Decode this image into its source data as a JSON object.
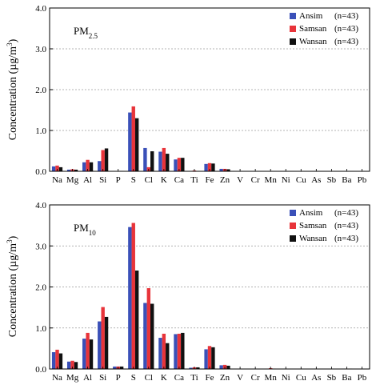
{
  "chart_data": [
    {
      "type": "bar",
      "panel_label": {
        "main": "PM",
        "sub": "2.5"
      },
      "ylabel": "Concentration (µg/m",
      "ylabel_sup": "3",
      "ylabel_close": ")",
      "ylim": [
        0,
        4.0
      ],
      "yticks": [
        "0.0",
        "1.0",
        "2.0",
        "3.0",
        "4.0"
      ],
      "grid": "horizontal dotted",
      "legend_position": "top-right",
      "categories": [
        "Na",
        "Mg",
        "Al",
        "Si",
        "P",
        "S",
        "Cl",
        "K",
        "Ca",
        "Ti",
        "Fe",
        "Zn",
        "V",
        "Cr",
        "Mn",
        "Ni",
        "Cu",
        "As",
        "Sb",
        "Ba",
        "Pb"
      ],
      "series": [
        {
          "name": "Ansim",
          "n": "(n=43)",
          "color": "#3a50b8",
          "values": [
            0.12,
            0.04,
            0.22,
            0.25,
            0.01,
            1.44,
            0.57,
            0.48,
            0.29,
            0.01,
            0.18,
            0.06,
            0,
            0,
            0,
            0,
            0,
            0,
            0,
            0,
            0
          ]
        },
        {
          "name": "Samsan",
          "n": "(n=43)",
          "color": "#e8343a",
          "values": [
            0.14,
            0.05,
            0.28,
            0.52,
            0.01,
            1.59,
            0.1,
            0.57,
            0.33,
            0.02,
            0.2,
            0.06,
            0,
            0,
            0,
            0,
            0,
            0,
            0,
            0,
            0
          ]
        },
        {
          "name": "Wansan",
          "n": "(n=43)",
          "color": "#111111",
          "values": [
            0.1,
            0.04,
            0.22,
            0.56,
            0.01,
            1.3,
            0.49,
            0.43,
            0.33,
            0.01,
            0.19,
            0.05,
            0,
            0,
            0,
            0,
            0,
            0,
            0,
            0,
            0
          ]
        }
      ]
    },
    {
      "type": "bar",
      "panel_label": {
        "main": "PM",
        "sub": "10"
      },
      "ylabel": "Concentration (µg/m",
      "ylabel_sup": "3",
      "ylabel_close": ")",
      "ylim": [
        0,
        4.0
      ],
      "yticks": [
        "0.0",
        "1.0",
        "2.0",
        "3.0",
        "4.0"
      ],
      "grid": "horizontal dotted",
      "legend_position": "top-right",
      "categories": [
        "Na",
        "Mg",
        "Al",
        "Si",
        "P",
        "S",
        "Cl",
        "K",
        "Ca",
        "Ti",
        "Fe",
        "Zn",
        "V",
        "Cr",
        "Mn",
        "Ni",
        "Cu",
        "As",
        "Sb",
        "Ba",
        "Pb"
      ],
      "series": [
        {
          "name": "Ansim",
          "n": "(n=43)",
          "color": "#3a50b8",
          "values": [
            0.41,
            0.18,
            0.74,
            1.16,
            0.06,
            3.46,
            1.61,
            0.76,
            0.85,
            0.03,
            0.48,
            0.09,
            0,
            0,
            0.01,
            0,
            0,
            0,
            0,
            0.01,
            0
          ]
        },
        {
          "name": "Samsan",
          "n": "(n=43)",
          "color": "#e8343a",
          "values": [
            0.47,
            0.2,
            0.88,
            1.51,
            0.06,
            3.56,
            1.97,
            0.86,
            0.86,
            0.04,
            0.56,
            0.1,
            0,
            0,
            0.02,
            0,
            0,
            0,
            0,
            0.01,
            0
          ]
        },
        {
          "name": "Wansan",
          "n": "(n=43)",
          "color": "#111111",
          "values": [
            0.38,
            0.17,
            0.72,
            1.27,
            0.06,
            2.4,
            1.59,
            0.63,
            0.88,
            0.04,
            0.53,
            0.08,
            0,
            0,
            0.01,
            0,
            0,
            0,
            0,
            0.01,
            0
          ]
        }
      ]
    }
  ]
}
